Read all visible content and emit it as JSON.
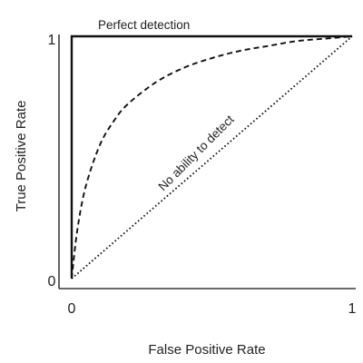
{
  "chart_data": {
    "type": "line",
    "title": "",
    "xlabel": "False Positive Rate",
    "ylabel": "True Positive Rate",
    "xlim": [
      0,
      1
    ],
    "ylim": [
      0,
      1
    ],
    "xticks": [
      "0",
      "1"
    ],
    "yticks": [
      "0",
      "1"
    ],
    "grid": false,
    "legend": "none",
    "annotations": {
      "perfect": "Perfect detection",
      "random": "No ability to detect"
    },
    "series": [
      {
        "style": "solid",
        "x": [
          0,
          0,
          1
        ],
        "y": [
          0,
          1,
          1
        ]
      },
      {
        "style": "dashed",
        "x": [
          0,
          0.02,
          0.05,
          0.1,
          0.15,
          0.2,
          0.3,
          0.4,
          0.5,
          0.6,
          0.7,
          0.8,
          0.9,
          1.0
        ],
        "y": [
          0,
          0.2,
          0.38,
          0.55,
          0.65,
          0.72,
          0.81,
          0.87,
          0.91,
          0.94,
          0.96,
          0.98,
          0.99,
          1.0
        ]
      },
      {
        "style": "dotted",
        "x": [
          0,
          1
        ],
        "y": [
          0,
          1
        ]
      }
    ],
    "colors": {
      "ink": "#111111",
      "text": "#222222"
    }
  }
}
